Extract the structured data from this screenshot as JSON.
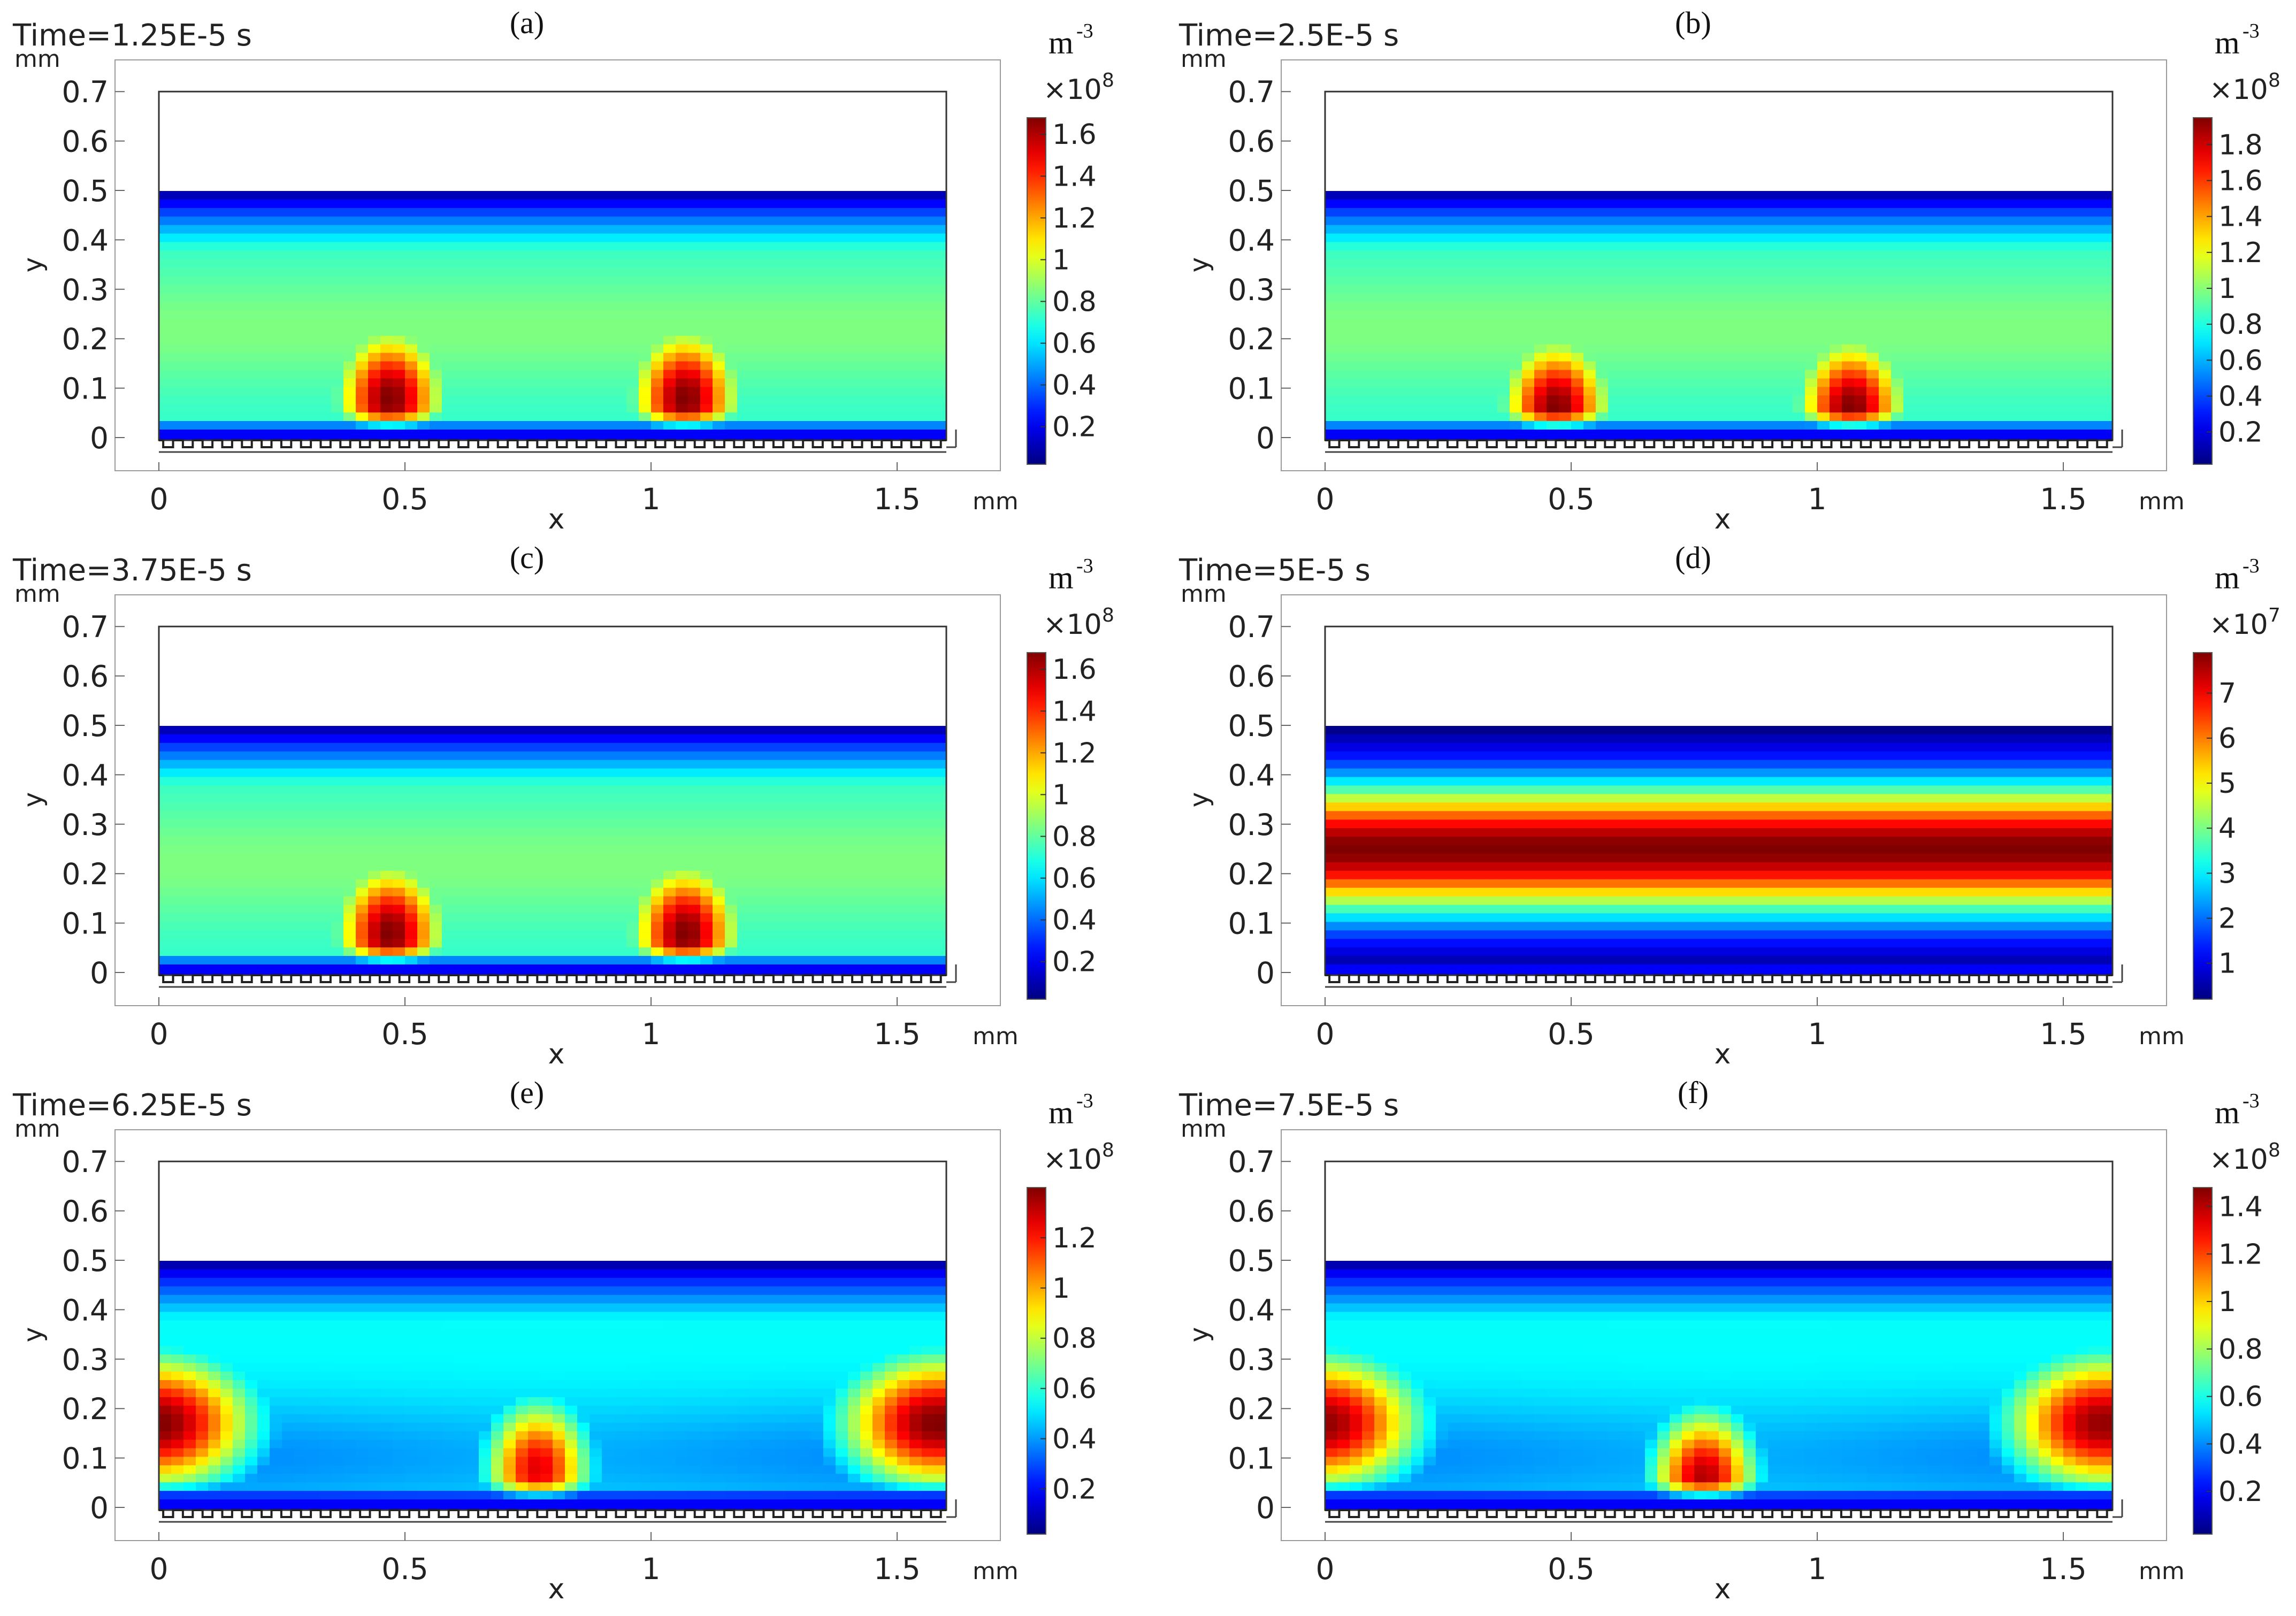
{
  "figure": {
    "x_unit": "mm",
    "y_unit": "mm",
    "x_label": "x",
    "y_label": "y",
    "colorbar_unit": "m",
    "colorbar_unit_exp": "-3",
    "x_ticks": [
      "0",
      "0.5",
      "1",
      "1.5"
    ],
    "y_ticks": [
      "0",
      "0.1",
      "0.2",
      "0.3",
      "0.4",
      "0.5",
      "0.6",
      "0.7"
    ]
  },
  "chart_data": [
    {
      "type": "heatmap",
      "panel": "(a)",
      "title": "Time=1.25E-5 s",
      "xlabel": "x",
      "ylabel": "y",
      "xlim": [
        0,
        1.6
      ],
      "ylim": [
        0,
        0.7
      ],
      "colorbar": {
        "multiplier": "×10",
        "exponent": "8",
        "ticks": [
          "0.2",
          "0.4",
          "0.6",
          "0.8",
          "1",
          "1.2",
          "1.4",
          "1.6"
        ],
        "tick_values": [
          0.2,
          0.4,
          0.6,
          0.8,
          1,
          1.2,
          1.4,
          1.6
        ],
        "range": [
          0.02,
          1.68
        ]
      },
      "pattern": "two_peaks",
      "peaks": [
        {
          "x": 0.47,
          "y": 0.08,
          "value": 1.68
        },
        {
          "x": 1.07,
          "y": 0.08,
          "value": 1.68
        }
      ]
    },
    {
      "type": "heatmap",
      "panel": "(b)",
      "title": "Time=2.5E-5 s",
      "xlabel": "x",
      "ylabel": "y",
      "xlim": [
        0,
        1.6
      ],
      "ylim": [
        0,
        0.7
      ],
      "colorbar": {
        "multiplier": "×10",
        "exponent": "8",
        "ticks": [
          "0.2",
          "0.4",
          "0.6",
          "0.8",
          "1",
          "1.2",
          "1.4",
          "1.6",
          "1.8"
        ],
        "tick_values": [
          0.2,
          0.4,
          0.6,
          0.8,
          1,
          1.2,
          1.4,
          1.6,
          1.8
        ],
        "range": [
          0.02,
          1.95
        ]
      },
      "pattern": "two_peaks",
      "peaks": [
        {
          "x": 0.47,
          "y": 0.06,
          "value": 1.95
        },
        {
          "x": 1.07,
          "y": 0.06,
          "value": 1.95
        }
      ]
    },
    {
      "type": "heatmap",
      "panel": "(c)",
      "title": "Time=3.75E-5 s",
      "xlabel": "x",
      "ylabel": "y",
      "xlim": [
        0,
        1.6
      ],
      "ylim": [
        0,
        0.7
      ],
      "colorbar": {
        "multiplier": "×10",
        "exponent": "8",
        "ticks": [
          "0.2",
          "0.4",
          "0.6",
          "0.8",
          "1",
          "1.2",
          "1.4",
          "1.6"
        ],
        "tick_values": [
          0.2,
          0.4,
          0.6,
          0.8,
          1,
          1.2,
          1.4,
          1.6
        ],
        "range": [
          0.02,
          1.68
        ]
      },
      "pattern": "two_peaks",
      "peaks": [
        {
          "x": 0.47,
          "y": 0.08,
          "value": 1.68
        },
        {
          "x": 1.07,
          "y": 0.08,
          "value": 1.68
        }
      ]
    },
    {
      "type": "heatmap",
      "panel": "(d)",
      "title": "Time=5E-5 s",
      "xlabel": "x",
      "ylabel": "y",
      "xlim": [
        0,
        1.6
      ],
      "ylim": [
        0,
        0.7
      ],
      "colorbar": {
        "multiplier": "×10",
        "exponent": "7",
        "ticks": [
          "1",
          "2",
          "3",
          "4",
          "5",
          "6",
          "7"
        ],
        "tick_values": [
          1,
          2,
          3,
          4,
          5,
          6,
          7
        ],
        "range": [
          0.2,
          7.9
        ]
      },
      "pattern": "uniform_band",
      "band_peak_y": 0.25,
      "band_peak_value": 7.9
    },
    {
      "type": "heatmap",
      "panel": "(e)",
      "title": "Time=6.25E-5 s",
      "xlabel": "x",
      "ylabel": "y",
      "xlim": [
        0,
        1.6
      ],
      "ylim": [
        0,
        0.7
      ],
      "colorbar": {
        "multiplier": "×10",
        "exponent": "8",
        "ticks": [
          "0.2",
          "0.4",
          "0.6",
          "0.8",
          "1",
          "1.2"
        ],
        "tick_values": [
          0.2,
          0.4,
          0.6,
          0.8,
          1,
          1.2
        ],
        "range": [
          0.02,
          1.4
        ]
      },
      "pattern": "edge_and_center",
      "peaks": [
        {
          "x": 0.0,
          "y": 0.17,
          "value": 1.4
        },
        {
          "x": 0.77,
          "y": 0.08,
          "value": 1.25
        },
        {
          "x": 1.58,
          "y": 0.17,
          "value": 1.4
        }
      ]
    },
    {
      "type": "heatmap",
      "panel": "(f)",
      "title": "Time=7.5E-5 s",
      "xlabel": "x",
      "ylabel": "y",
      "xlim": [
        0,
        1.6
      ],
      "ylim": [
        0,
        0.7
      ],
      "colorbar": {
        "multiplier": "×10",
        "exponent": "8",
        "ticks": [
          "0.2",
          "0.4",
          "0.6",
          "0.8",
          "1",
          "1.2",
          "1.4"
        ],
        "tick_values": [
          0.2,
          0.4,
          0.6,
          0.8,
          1,
          1.2,
          1.4
        ],
        "range": [
          0.02,
          1.48
        ]
      },
      "pattern": "edge_and_center",
      "peaks": [
        {
          "x": 0.0,
          "y": 0.17,
          "value": 1.45
        },
        {
          "x": 0.77,
          "y": 0.06,
          "value": 1.4
        },
        {
          "x": 1.58,
          "y": 0.17,
          "value": 1.45
        }
      ]
    }
  ]
}
